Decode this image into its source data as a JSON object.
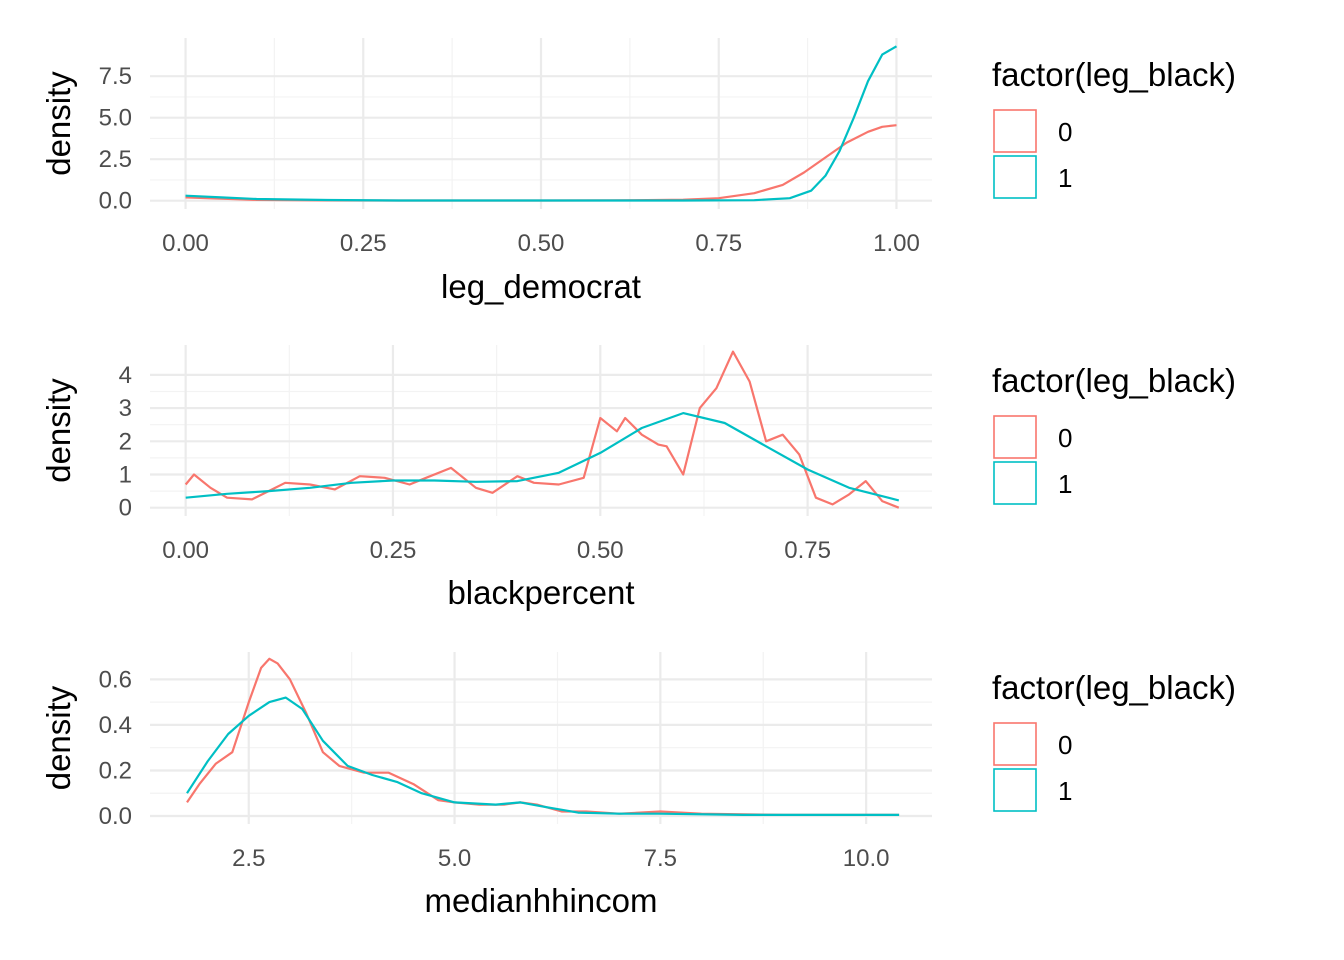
{
  "colors": {
    "series_0": "#F8766D",
    "series_1": "#00BFC4"
  },
  "chart_data": [
    {
      "type": "line",
      "xlabel": "leg_democrat",
      "ylabel": "density",
      "xlim": [
        -0.05,
        1.05
      ],
      "ylim": [
        -0.5,
        9.8
      ],
      "xticks": [
        0.0,
        0.25,
        0.5,
        0.75,
        1.0
      ],
      "xtick_labels": [
        "0.00",
        "0.25",
        "0.50",
        "0.75",
        "1.00"
      ],
      "yticks": [
        0.0,
        2.5,
        5.0,
        7.5
      ],
      "ytick_labels": [
        "0.0",
        "2.5",
        "5.0",
        "7.5"
      ],
      "grid": true,
      "legend": {
        "title": "factor(leg_black)",
        "position": "right",
        "labels": [
          "0",
          "1"
        ]
      },
      "series": [
        {
          "name": "0",
          "x": [
            0.0,
            0.05,
            0.1,
            0.2,
            0.3,
            0.5,
            0.6,
            0.7,
            0.75,
            0.8,
            0.84,
            0.87,
            0.9,
            0.93,
            0.96,
            0.98,
            1.0
          ],
          "y": [
            0.2,
            0.12,
            0.05,
            0.02,
            0.01,
            0.01,
            0.02,
            0.06,
            0.15,
            0.45,
            0.95,
            1.7,
            2.6,
            3.5,
            4.15,
            4.45,
            4.55
          ]
        },
        {
          "name": "1",
          "x": [
            0.0,
            0.05,
            0.1,
            0.2,
            0.3,
            0.5,
            0.7,
            0.8,
            0.85,
            0.88,
            0.9,
            0.92,
            0.94,
            0.96,
            0.98,
            1.0
          ],
          "y": [
            0.3,
            0.2,
            0.1,
            0.04,
            0.01,
            0.01,
            0.01,
            0.03,
            0.15,
            0.6,
            1.5,
            3.0,
            5.0,
            7.2,
            8.8,
            9.3
          ]
        }
      ]
    },
    {
      "type": "line",
      "xlabel": "blackpercent",
      "ylabel": "density",
      "xlim": [
        -0.043,
        0.9
      ],
      "ylim": [
        -0.25,
        4.9
      ],
      "xticks": [
        0.0,
        0.25,
        0.5,
        0.75
      ],
      "xtick_labels": [
        "0.00",
        "0.25",
        "0.50",
        "0.75"
      ],
      "yticks": [
        0,
        1,
        2,
        3,
        4
      ],
      "ytick_labels": [
        "0",
        "1",
        "2",
        "3",
        "4"
      ],
      "grid": true,
      "legend": {
        "title": "factor(leg_black)",
        "position": "right",
        "labels": [
          "0",
          "1"
        ]
      },
      "series": [
        {
          "name": "0",
          "x": [
            0.0,
            0.01,
            0.03,
            0.05,
            0.08,
            0.1,
            0.12,
            0.15,
            0.18,
            0.21,
            0.24,
            0.27,
            0.29,
            0.32,
            0.35,
            0.37,
            0.4,
            0.42,
            0.45,
            0.48,
            0.5,
            0.52,
            0.53,
            0.55,
            0.57,
            0.58,
            0.6,
            0.62,
            0.64,
            0.66,
            0.68,
            0.7,
            0.72,
            0.74,
            0.76,
            0.78,
            0.8,
            0.82,
            0.84,
            0.86
          ],
          "y": [
            0.7,
            1.0,
            0.6,
            0.3,
            0.25,
            0.5,
            0.75,
            0.7,
            0.55,
            0.95,
            0.9,
            0.7,
            0.9,
            1.2,
            0.6,
            0.45,
            0.95,
            0.75,
            0.7,
            0.9,
            2.7,
            2.3,
            2.7,
            2.2,
            1.9,
            1.85,
            1.0,
            3.0,
            3.6,
            4.7,
            3.8,
            2.0,
            2.2,
            1.6,
            0.3,
            0.1,
            0.4,
            0.8,
            0.2,
            0.0
          ]
        },
        {
          "name": "1",
          "x": [
            0.0,
            0.05,
            0.1,
            0.15,
            0.2,
            0.25,
            0.3,
            0.35,
            0.4,
            0.45,
            0.5,
            0.55,
            0.6,
            0.65,
            0.7,
            0.75,
            0.8,
            0.86
          ],
          "y": [
            0.3,
            0.42,
            0.5,
            0.6,
            0.75,
            0.82,
            0.82,
            0.78,
            0.8,
            1.05,
            1.65,
            2.4,
            2.85,
            2.55,
            1.85,
            1.15,
            0.6,
            0.22
          ]
        }
      ]
    },
    {
      "type": "line",
      "xlabel": "medianhhincom",
      "ylabel": "density",
      "xlim": [
        1.3,
        10.8
      ],
      "ylim": [
        -0.035,
        0.72
      ],
      "xticks": [
        2.5,
        5.0,
        7.5,
        10.0
      ],
      "xtick_labels": [
        "2.5",
        "5.0",
        "7.5",
        "10.0"
      ],
      "yticks": [
        0.0,
        0.2,
        0.4,
        0.6
      ],
      "ytick_labels": [
        "0.0",
        "0.2",
        "0.4",
        "0.6"
      ],
      "grid": true,
      "legend": {
        "title": "factor(leg_black)",
        "position": "right",
        "labels": [
          "0",
          "1"
        ]
      },
      "series": [
        {
          "name": "0",
          "x": [
            1.75,
            1.9,
            2.1,
            2.3,
            2.5,
            2.65,
            2.75,
            2.85,
            3.0,
            3.2,
            3.4,
            3.6,
            3.9,
            4.2,
            4.5,
            4.8,
            5.0,
            5.3,
            5.6,
            5.8,
            6.0,
            6.3,
            6.6,
            7.0,
            7.5,
            8.0,
            9.0,
            10.0,
            10.4
          ],
          "y": [
            0.06,
            0.14,
            0.23,
            0.28,
            0.5,
            0.65,
            0.69,
            0.67,
            0.6,
            0.45,
            0.28,
            0.22,
            0.19,
            0.19,
            0.14,
            0.07,
            0.06,
            0.05,
            0.05,
            0.06,
            0.05,
            0.02,
            0.02,
            0.01,
            0.02,
            0.01,
            0.005,
            0.005,
            0.005
          ]
        },
        {
          "name": "1",
          "x": [
            1.75,
            2.0,
            2.25,
            2.5,
            2.75,
            2.95,
            3.15,
            3.4,
            3.7,
            4.0,
            4.3,
            4.6,
            5.0,
            5.5,
            5.8,
            6.1,
            6.5,
            7.0,
            7.5,
            8.5,
            10.4
          ],
          "y": [
            0.1,
            0.24,
            0.36,
            0.44,
            0.5,
            0.52,
            0.47,
            0.33,
            0.22,
            0.18,
            0.15,
            0.1,
            0.06,
            0.05,
            0.06,
            0.04,
            0.015,
            0.01,
            0.01,
            0.005,
            0.005
          ]
        }
      ]
    }
  ]
}
